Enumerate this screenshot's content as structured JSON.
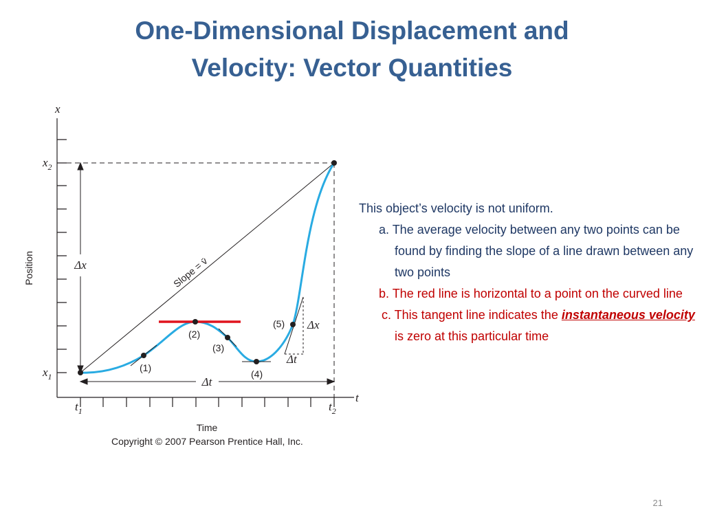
{
  "title": [
    "One-Dimensional Displacement and",
    "Velocity: Vector Quantities"
  ],
  "figure": {
    "x_axis_title": "x",
    "x2": {
      "base": "x",
      "sub": "2"
    },
    "x1": {
      "base": "x",
      "sub": "1"
    },
    "position_label": "Position",
    "delta_x_total": "Δx",
    "slope_label": "Slope = v̄",
    "points": [
      "(1)",
      "(2)",
      "(3)",
      "(4)",
      "(5)"
    ],
    "delta_x_small": "Δx",
    "delta_t_small": "Δt",
    "delta_t_total": "Δt",
    "t_axis": "t",
    "t1": {
      "base": "t",
      "sub": "1"
    },
    "t2": {
      "base": "t",
      "sub": "2"
    },
    "time_label": "Time",
    "copyright": "Copyright © 2007 Pearson Prentice Hall, Inc."
  },
  "notes": {
    "intro": "This object’s velocity is not uniform.",
    "a": "a. The average velocity between any two points can be found by finding the slope of a line drawn between any two points",
    "b": "b. The red line is horizontal to a point on the curved line",
    "c": {
      "before": "c. This tangent line indicates the",
      "emphasis": "instantaneous velocity",
      "after": "is zero at this particular time"
    }
  },
  "page_number": "21"
}
